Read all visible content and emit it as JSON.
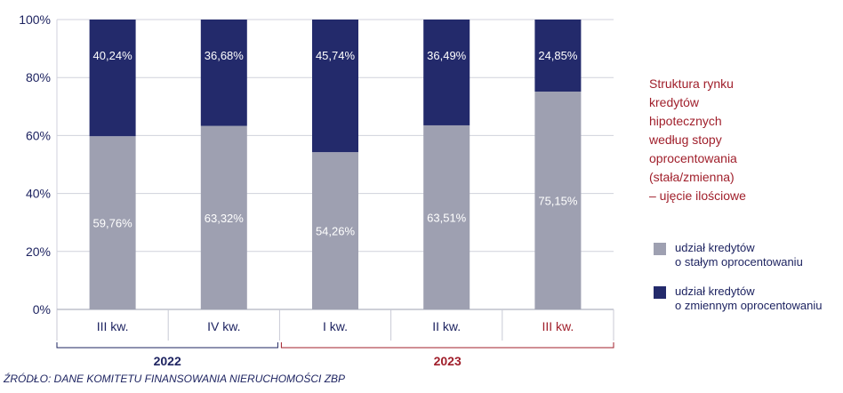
{
  "chart_data": {
    "type": "bar",
    "stacked": true,
    "categories": [
      "III kw.",
      "IV kw.",
      "I kw.",
      "II kw.",
      "III kw."
    ],
    "years": [
      {
        "label": "2022",
        "categories": [
          0,
          1
        ]
      },
      {
        "label": "2023",
        "categories": [
          2,
          3,
          4
        ]
      }
    ],
    "series": [
      {
        "name_lines": [
          "udział kredytów",
          "o stałym oprocentowaniu"
        ],
        "values": [
          59.76,
          63.32,
          54.26,
          63.51,
          75.15
        ],
        "labels": [
          "59,76%",
          "63,32%",
          "54,26%",
          "63,51%",
          "75,15%"
        ],
        "color": "#9ea0b1"
      },
      {
        "name_lines": [
          "udział kredytów",
          "o zmiennym oprocentowaniu"
        ],
        "values": [
          40.24,
          36.68,
          45.74,
          36.49,
          24.85
        ],
        "labels": [
          "40,24%",
          "36,68%",
          "45,74%",
          "36,49%",
          "24,85%"
        ],
        "color": "#232a6b"
      }
    ],
    "ylim": [
      0,
      100
    ],
    "yticks": [
      0,
      20,
      40,
      60,
      80,
      100
    ],
    "ytick_labels": [
      "0%",
      "20%",
      "40%",
      "60%",
      "80%",
      "100%"
    ],
    "grid": true,
    "title_lines": [
      "Struktura rynku",
      "kredytów",
      "hipotecznych",
      "według stopy",
      "oprocentowania",
      "(stała/zmienna)",
      "– ujęcie ilościowe"
    ],
    "legend_position": "right"
  },
  "source": "ŹRÓDŁO: DANE KOMITETU FINANSOWANIA NIERUCHOMOŚCI ZBP",
  "colors": {
    "axis_text": "#1e2461",
    "highlight": "#a01f2b",
    "grid": "#d0d2dc"
  }
}
